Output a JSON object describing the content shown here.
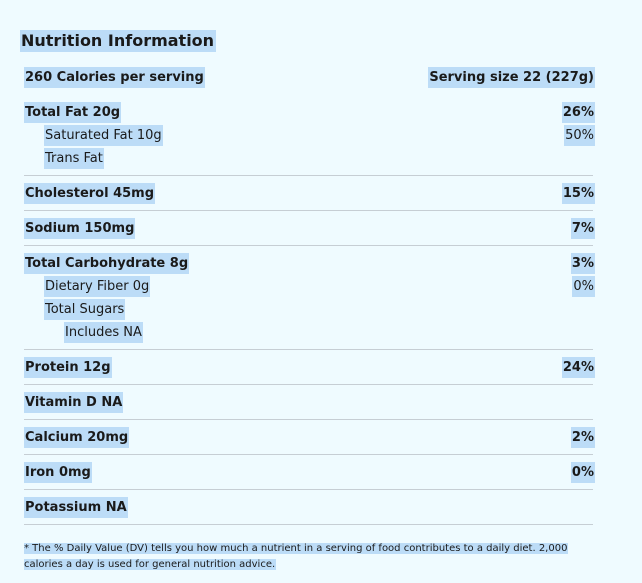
{
  "title": "Nutrition Information",
  "calories_per_serving": "260 Calories per serving",
  "serving_size": "Serving size 22 (227g)",
  "rows": [
    {
      "name": "Total Fat 20g",
      "dv": "26%"
    },
    {
      "name": "Saturated Fat 10g",
      "dv": "50%"
    },
    {
      "name": "Trans Fat",
      "dv": ""
    },
    {
      "name": "Cholesterol 45mg",
      "dv": "15%"
    },
    {
      "name": "Sodium 150mg",
      "dv": "7%"
    },
    {
      "name": "Total Carbohydrate 8g",
      "dv": "3%"
    },
    {
      "name": "Dietary Fiber 0g",
      "dv": "0%"
    },
    {
      "name": "Total Sugars",
      "dv": ""
    },
    {
      "name": "Includes NA",
      "dv": ""
    },
    {
      "name": "Protein 12g",
      "dv": "24%"
    },
    {
      "name": "Vitamin D NA",
      "dv": ""
    },
    {
      "name": "Calcium 20mg",
      "dv": "2%"
    },
    {
      "name": "Iron 0mg",
      "dv": "0%"
    },
    {
      "name": "Potassium NA",
      "dv": ""
    }
  ],
  "footnote_line1": "* The % Daily Value (DV) tells you how much a nutrient in a serving of food contributes to a daily diet. 2,000",
  "footnote_line2": "calories a day is used for general nutrition advice."
}
